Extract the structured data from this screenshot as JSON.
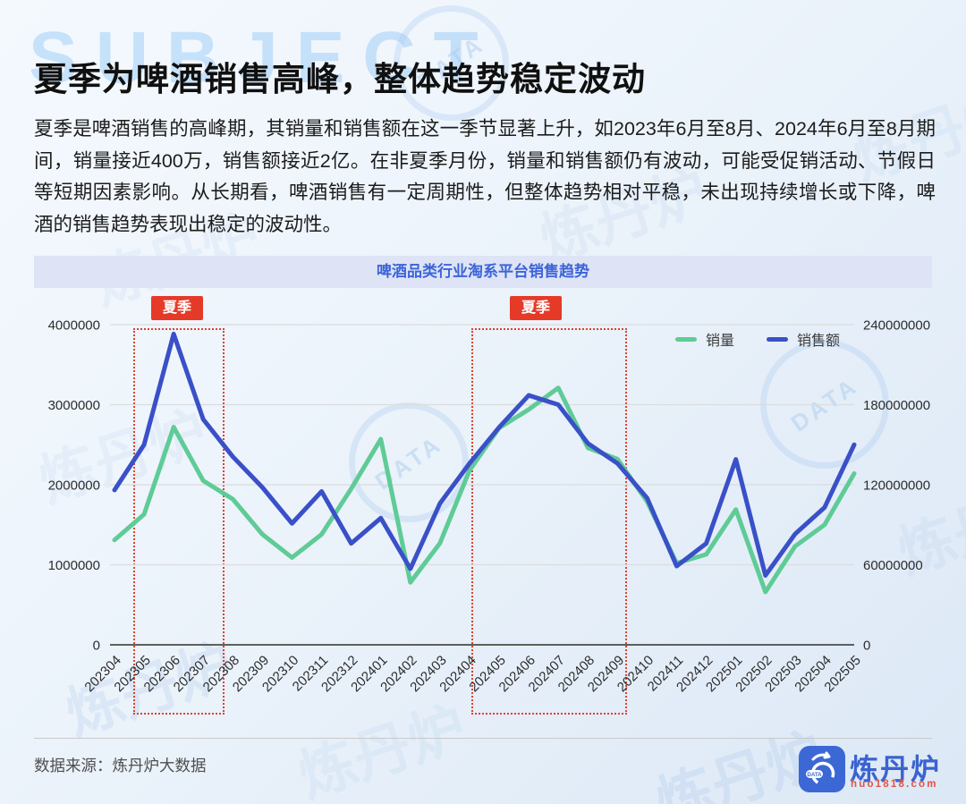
{
  "page": {
    "title": "夏季为啤酒销售高峰，整体趋势稳定波动",
    "body": "夏季是啤酒销售的高峰期，其销量和销售额在这一季节显著上升，如2023年6月至8月、2024年6月至8月期间，销量接近400万，销售额接近2亿。在非夏季月份，销量和销售额仍有波动，可能受促销活动、节假日等短期因素影响。从长期看，啤酒销售有一定周期性，但整体趋势相对平稳，未出现持续增长或下降，啤酒的销售趋势表现出稳定的波动性。"
  },
  "watermarks": {
    "subject": "SUBJECT",
    "stamp_label": "DATA",
    "tile_label": "炼丹炉"
  },
  "chart_data": {
    "type": "line",
    "title": "啤酒品类行业淘系平台销售趋势",
    "categories": [
      "202304",
      "202305",
      "202306",
      "202307",
      "202308",
      "202309",
      "202310",
      "202311",
      "202312",
      "202401",
      "202402",
      "202403",
      "202404",
      "202405",
      "202406",
      "202407",
      "202408",
      "202409",
      "202410",
      "202411",
      "202412",
      "202501",
      "202502",
      "202503",
      "202504",
      "202505"
    ],
    "series": [
      {
        "name": "销量",
        "axis": "left",
        "color": "#5fcb96",
        "values": [
          1310000,
          1630000,
          2720000,
          2050000,
          1820000,
          1380000,
          1090000,
          1380000,
          1950000,
          2570000,
          780000,
          1270000,
          2180000,
          2710000,
          2940000,
          3210000,
          2460000,
          2320000,
          1790000,
          1020000,
          1130000,
          1690000,
          660000,
          1230000,
          1500000,
          2140000
        ]
      },
      {
        "name": "销售额",
        "axis": "right",
        "color": "#3a50c8",
        "values": [
          116000000,
          150000000,
          233000000,
          169000000,
          141000000,
          118000000,
          91000000,
          115000000,
          76000000,
          95000000,
          57000000,
          106000000,
          136000000,
          163000000,
          187000000,
          180000000,
          151000000,
          136000000,
          110000000,
          59000000,
          76000000,
          139000000,
          52000000,
          83000000,
          103000000,
          150000000
        ]
      }
    ],
    "left_axis": {
      "min": 0,
      "max": 4000000,
      "ticks": [
        4000000,
        3000000,
        2000000,
        1000000,
        0
      ]
    },
    "right_axis": {
      "min": 0,
      "max": 240000000,
      "ticks": [
        240000000,
        180000000,
        120000000,
        60000000,
        0
      ]
    },
    "annotations": [
      {
        "label": "夏季",
        "from": "202305",
        "to": "202307",
        "pad_left": 0.37,
        "pad_right": 0.6
      },
      {
        "label": "夏季",
        "from": "202405",
        "to": "202409",
        "pad_left": 0.95,
        "pad_right": 0.2
      }
    ],
    "grid": true,
    "legend_position": "top-right"
  },
  "footer": {
    "source": "数据来源：炼丹炉大数据",
    "brand_name": "炼丹炉",
    "brand_url": "huo1818.com",
    "logo_data_label": "DATA"
  },
  "colors": {
    "line_volume": "#5fcb96",
    "line_revenue": "#3a50c8",
    "summer_box_border": "#e04030",
    "badge_background": "#e53a28",
    "chart_title_text": "#3c64d8",
    "chart_title_background": "#dee4f6",
    "brand_blue": "#3a63d0",
    "brand_red": "#e05548"
  }
}
